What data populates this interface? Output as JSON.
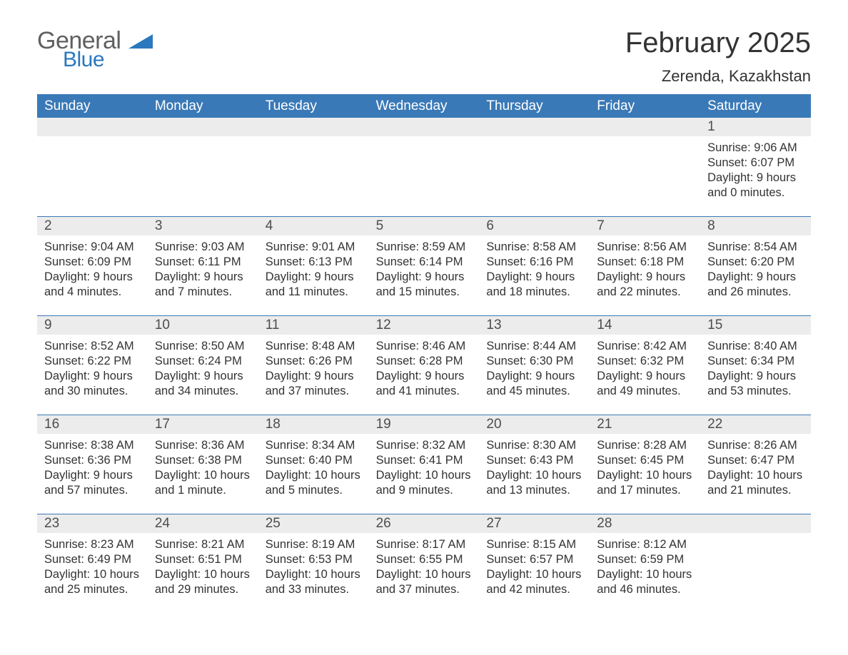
{
  "logo": {
    "text_general": "General",
    "text_blue": "Blue",
    "tri_color": "#2a78bd",
    "general_color": "#606060"
  },
  "header": {
    "month_title": "February 2025",
    "location": "Zerenda, Kazakhstan"
  },
  "colors": {
    "header_bg": "#3a79b7",
    "header_text": "#ffffff",
    "daynum_bg": "#ececec",
    "rule": "#3a79b7",
    "body_text": "#333333",
    "page_bg": "#ffffff"
  },
  "weekdays": [
    "Sunday",
    "Monday",
    "Tuesday",
    "Wednesday",
    "Thursday",
    "Friday",
    "Saturday"
  ],
  "weeks": [
    {
      "days": [
        {
          "num": "",
          "lines": []
        },
        {
          "num": "",
          "lines": []
        },
        {
          "num": "",
          "lines": []
        },
        {
          "num": "",
          "lines": []
        },
        {
          "num": "",
          "lines": []
        },
        {
          "num": "",
          "lines": []
        },
        {
          "num": "1",
          "lines": [
            "Sunrise: 9:06 AM",
            "Sunset: 6:07 PM",
            "Daylight: 9 hours and 0 minutes."
          ]
        }
      ]
    },
    {
      "days": [
        {
          "num": "2",
          "lines": [
            "Sunrise: 9:04 AM",
            "Sunset: 6:09 PM",
            "Daylight: 9 hours and 4 minutes."
          ]
        },
        {
          "num": "3",
          "lines": [
            "Sunrise: 9:03 AM",
            "Sunset: 6:11 PM",
            "Daylight: 9 hours and 7 minutes."
          ]
        },
        {
          "num": "4",
          "lines": [
            "Sunrise: 9:01 AM",
            "Sunset: 6:13 PM",
            "Daylight: 9 hours and 11 minutes."
          ]
        },
        {
          "num": "5",
          "lines": [
            "Sunrise: 8:59 AM",
            "Sunset: 6:14 PM",
            "Daylight: 9 hours and 15 minutes."
          ]
        },
        {
          "num": "6",
          "lines": [
            "Sunrise: 8:58 AM",
            "Sunset: 6:16 PM",
            "Daylight: 9 hours and 18 minutes."
          ]
        },
        {
          "num": "7",
          "lines": [
            "Sunrise: 8:56 AM",
            "Sunset: 6:18 PM",
            "Daylight: 9 hours and 22 minutes."
          ]
        },
        {
          "num": "8",
          "lines": [
            "Sunrise: 8:54 AM",
            "Sunset: 6:20 PM",
            "Daylight: 9 hours and 26 minutes."
          ]
        }
      ]
    },
    {
      "days": [
        {
          "num": "9",
          "lines": [
            "Sunrise: 8:52 AM",
            "Sunset: 6:22 PM",
            "Daylight: 9 hours and 30 minutes."
          ]
        },
        {
          "num": "10",
          "lines": [
            "Sunrise: 8:50 AM",
            "Sunset: 6:24 PM",
            "Daylight: 9 hours and 34 minutes."
          ]
        },
        {
          "num": "11",
          "lines": [
            "Sunrise: 8:48 AM",
            "Sunset: 6:26 PM",
            "Daylight: 9 hours and 37 minutes."
          ]
        },
        {
          "num": "12",
          "lines": [
            "Sunrise: 8:46 AM",
            "Sunset: 6:28 PM",
            "Daylight: 9 hours and 41 minutes."
          ]
        },
        {
          "num": "13",
          "lines": [
            "Sunrise: 8:44 AM",
            "Sunset: 6:30 PM",
            "Daylight: 9 hours and 45 minutes."
          ]
        },
        {
          "num": "14",
          "lines": [
            "Sunrise: 8:42 AM",
            "Sunset: 6:32 PM",
            "Daylight: 9 hours and 49 minutes."
          ]
        },
        {
          "num": "15",
          "lines": [
            "Sunrise: 8:40 AM",
            "Sunset: 6:34 PM",
            "Daylight: 9 hours and 53 minutes."
          ]
        }
      ]
    },
    {
      "days": [
        {
          "num": "16",
          "lines": [
            "Sunrise: 8:38 AM",
            "Sunset: 6:36 PM",
            "Daylight: 9 hours and 57 minutes."
          ]
        },
        {
          "num": "17",
          "lines": [
            "Sunrise: 8:36 AM",
            "Sunset: 6:38 PM",
            "Daylight: 10 hours and 1 minute."
          ]
        },
        {
          "num": "18",
          "lines": [
            "Sunrise: 8:34 AM",
            "Sunset: 6:40 PM",
            "Daylight: 10 hours and 5 minutes."
          ]
        },
        {
          "num": "19",
          "lines": [
            "Sunrise: 8:32 AM",
            "Sunset: 6:41 PM",
            "Daylight: 10 hours and 9 minutes."
          ]
        },
        {
          "num": "20",
          "lines": [
            "Sunrise: 8:30 AM",
            "Sunset: 6:43 PM",
            "Daylight: 10 hours and 13 minutes."
          ]
        },
        {
          "num": "21",
          "lines": [
            "Sunrise: 8:28 AM",
            "Sunset: 6:45 PM",
            "Daylight: 10 hours and 17 minutes."
          ]
        },
        {
          "num": "22",
          "lines": [
            "Sunrise: 8:26 AM",
            "Sunset: 6:47 PM",
            "Daylight: 10 hours and 21 minutes."
          ]
        }
      ]
    },
    {
      "days": [
        {
          "num": "23",
          "lines": [
            "Sunrise: 8:23 AM",
            "Sunset: 6:49 PM",
            "Daylight: 10 hours and 25 minutes."
          ]
        },
        {
          "num": "24",
          "lines": [
            "Sunrise: 8:21 AM",
            "Sunset: 6:51 PM",
            "Daylight: 10 hours and 29 minutes."
          ]
        },
        {
          "num": "25",
          "lines": [
            "Sunrise: 8:19 AM",
            "Sunset: 6:53 PM",
            "Daylight: 10 hours and 33 minutes."
          ]
        },
        {
          "num": "26",
          "lines": [
            "Sunrise: 8:17 AM",
            "Sunset: 6:55 PM",
            "Daylight: 10 hours and 37 minutes."
          ]
        },
        {
          "num": "27",
          "lines": [
            "Sunrise: 8:15 AM",
            "Sunset: 6:57 PM",
            "Daylight: 10 hours and 42 minutes."
          ]
        },
        {
          "num": "28",
          "lines": [
            "Sunrise: 8:12 AM",
            "Sunset: 6:59 PM",
            "Daylight: 10 hours and 46 minutes."
          ]
        },
        {
          "num": "",
          "lines": []
        }
      ]
    }
  ]
}
